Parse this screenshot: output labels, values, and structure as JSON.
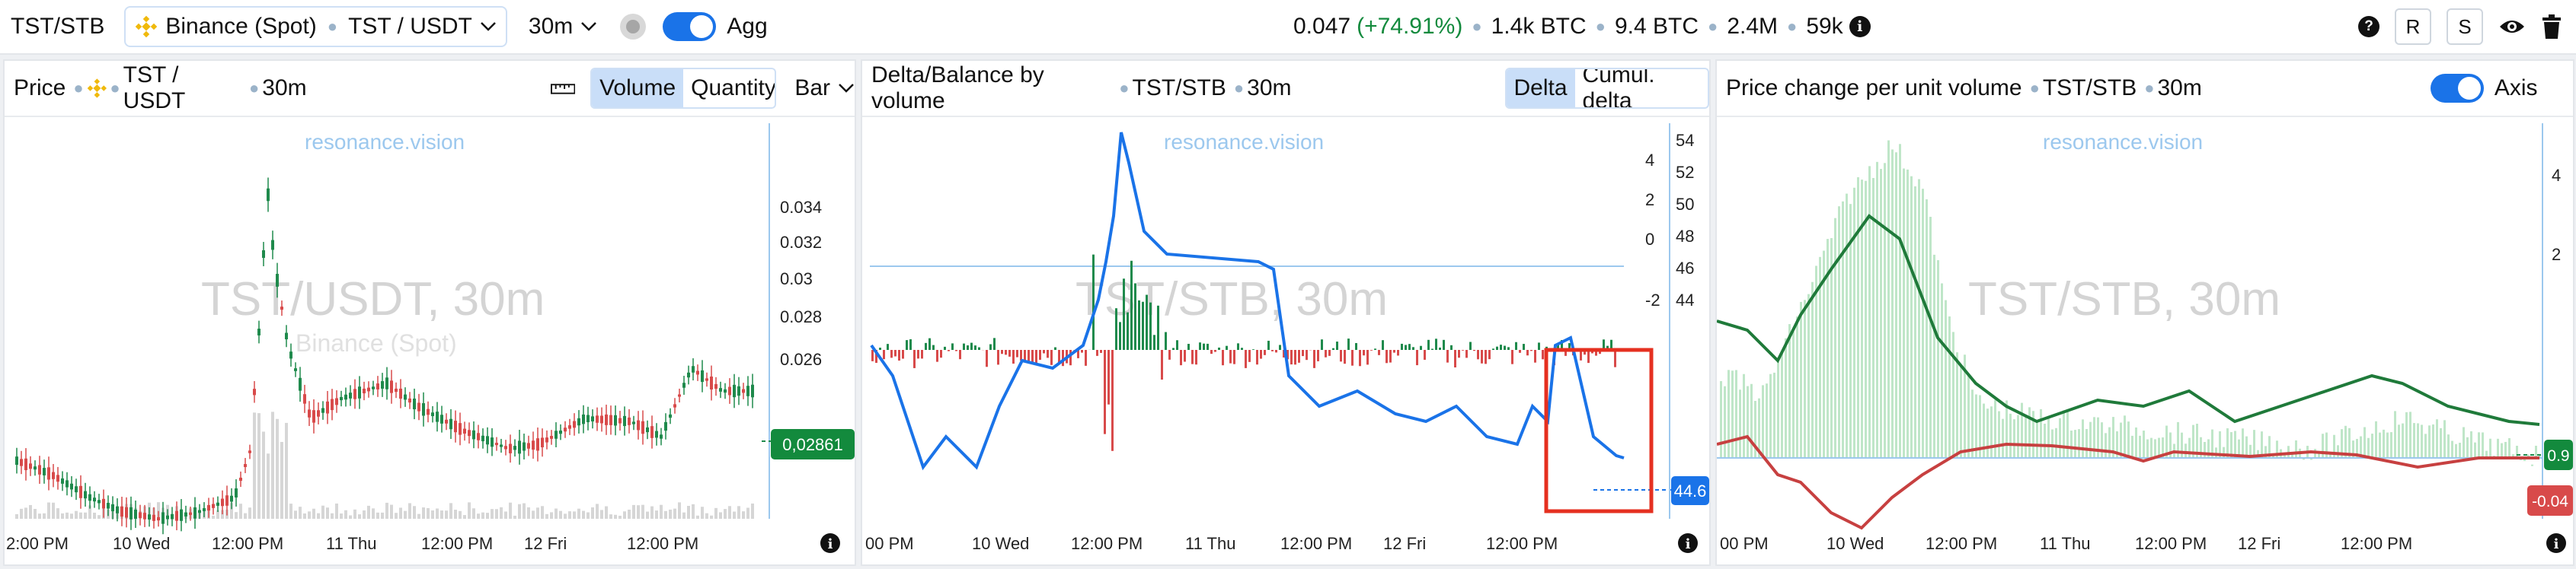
{
  "topbar": {
    "pair": "TST/STB",
    "exchange": "Binance (Spot)",
    "symbol": "TST / USDT",
    "interval": "30m",
    "agg_label": "Agg",
    "price": "0.047",
    "change": "(+74.91%)",
    "stat1": "1.4k BTC",
    "stat2": "9.4 BTC",
    "stat3": "2.4M",
    "stat4": "59k",
    "btn_r": "R",
    "btn_s": "S",
    "help": "?",
    "info": "i"
  },
  "colors": {
    "accent": "#1a73e8",
    "up": "#1f8a4c",
    "down": "#d84a4a",
    "price_tag": "#138a3d",
    "delta_tag": "#1a73e8",
    "neg_tag": "#d84a4a",
    "highlight_box": "#e53020"
  },
  "panel1": {
    "title": "Price",
    "symbol": "TST / USDT",
    "interval": "30m",
    "seg_volume": "Volume",
    "seg_quantity": "Quantity",
    "chart_type": "Bar",
    "watermark": "resonance.vision",
    "watermark_big": "TST/USDT, 30m",
    "watermark_exchange": "Binance (Spot)",
    "price_tag": "0,02861",
    "y_ticks": [
      "0.034",
      "0.032",
      "0.03",
      "0.028",
      "0.026"
    ],
    "x_ticks": [
      "2:00 PM",
      "10 Wed",
      "12:00 PM",
      "11 Thu",
      "12:00 PM",
      "12 Fri",
      "12:00 PM"
    ],
    "info": "i"
  },
  "panel2": {
    "title": "Delta/Balance by volume",
    "symbol": "TST/STB",
    "interval": "30m",
    "seg_delta": "Delta",
    "seg_cumul": "Cumul. delta",
    "watermark": "resonance.vision",
    "watermark_big": "TST/STB, 30m",
    "value_tag": "44.6",
    "right_ticks": [
      "54",
      "52",
      "50",
      "48",
      "46",
      "44"
    ],
    "inner_ticks": [
      "4",
      "2",
      "0",
      "-2"
    ],
    "x_ticks": [
      "00 PM",
      "10 Wed",
      "12:00 PM",
      "11 Thu",
      "12:00 PM",
      "12 Fri",
      "12:00 PM"
    ],
    "info": "i"
  },
  "panel3": {
    "title": "Price change per unit volume",
    "symbol": "TST/STB",
    "interval": "30m",
    "axis_label": "Axis",
    "watermark": "resonance.vision",
    "watermark_big": "TST/STB, 30m",
    "tag_pos": "0.9",
    "tag_neg": "-0.04",
    "y_ticks": [
      "4",
      "2"
    ],
    "x_ticks": [
      "00 PM",
      "10 Wed",
      "12:00 PM",
      "11 Thu",
      "12:00 PM",
      "12 Fri",
      "12:00 PM"
    ],
    "info": "i"
  }
}
